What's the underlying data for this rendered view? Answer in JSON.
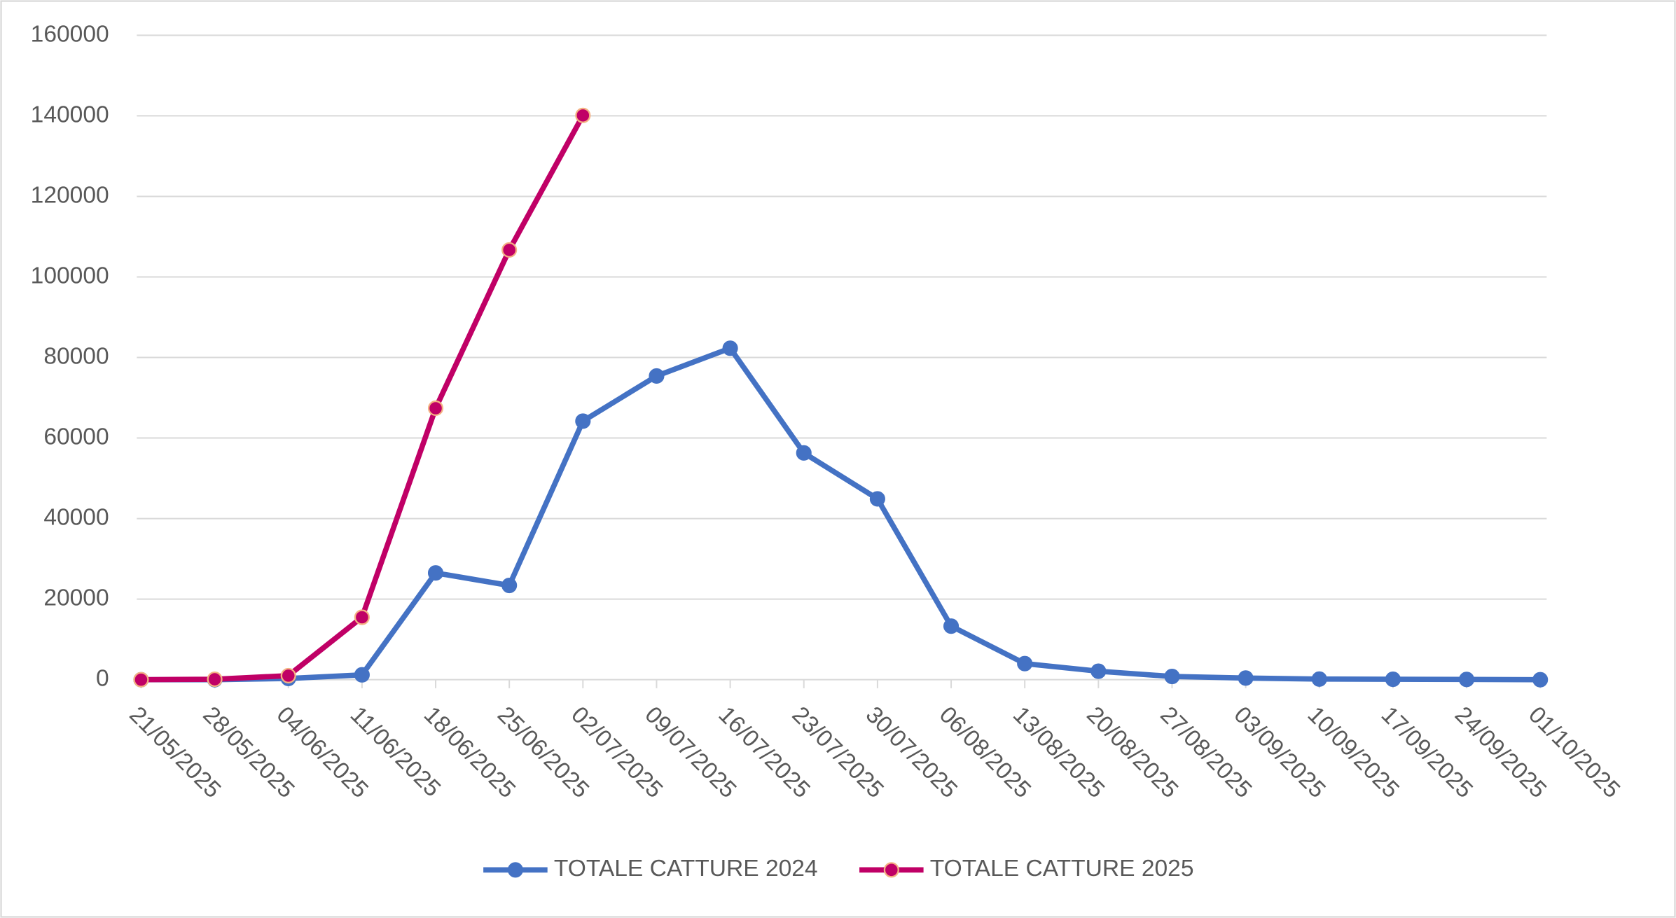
{
  "chart_data": {
    "type": "line",
    "categories": [
      "21/05/2025",
      "28/05/2025",
      "04/06/2025",
      "11/06/2025",
      "18/06/2025",
      "25/06/2025",
      "02/07/2025",
      "09/07/2025",
      "16/07/2025",
      "23/07/2025",
      "30/07/2025",
      "06/08/2025",
      "13/08/2025",
      "20/08/2025",
      "27/08/2025",
      "03/09/2025",
      "10/09/2025",
      "17/09/2025",
      "24/09/2025",
      "01/10/2025"
    ],
    "series": [
      {
        "name": "TOTALE CATTURE 2024",
        "color": "#4472c4",
        "marker_edge": "#4472c4",
        "values": [
          0,
          0,
          300,
          1200,
          26500,
          23400,
          64200,
          75400,
          82300,
          56300,
          44900,
          13300,
          4000,
          2100,
          800,
          400,
          150,
          100,
          50,
          0
        ]
      },
      {
        "name": "TOTALE CATTURE 2025",
        "color": "#c00066",
        "marker_edge": "#f4b183",
        "values": [
          0,
          100,
          1000,
          15500,
          67400,
          106700,
          140100,
          null,
          null,
          null,
          null,
          null,
          null,
          null,
          null,
          null,
          null,
          null,
          null,
          null
        ]
      }
    ],
    "ylim": [
      0,
      160000
    ],
    "yticks": [
      0,
      20000,
      40000,
      60000,
      80000,
      100000,
      120000,
      140000,
      160000
    ],
    "grid": true,
    "legend": "bottom"
  }
}
